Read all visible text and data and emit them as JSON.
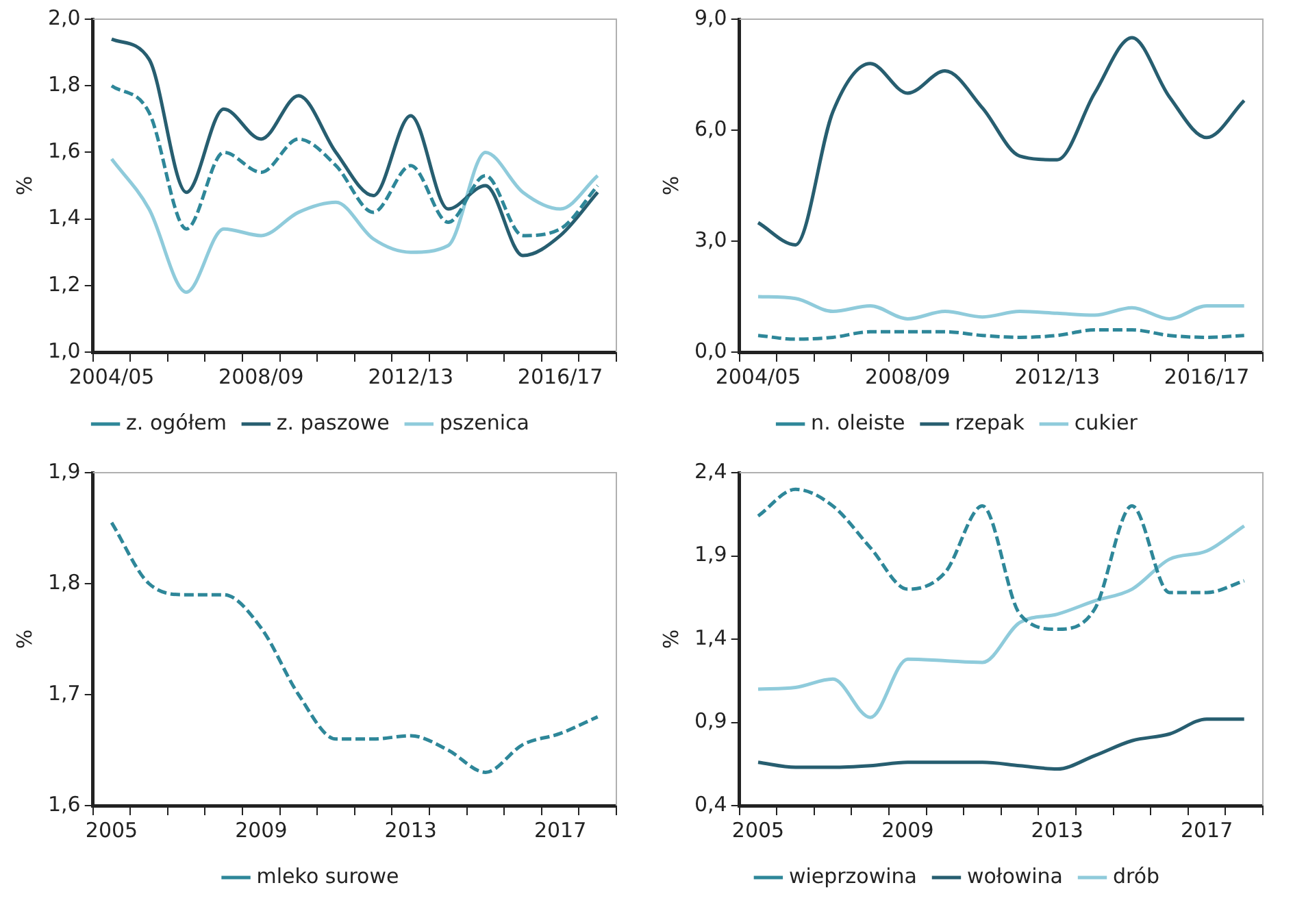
{
  "chart_data": [
    {
      "type": "line",
      "ylabel": "%",
      "categories": [
        "2004/05",
        null,
        null,
        null,
        "2008/09",
        null,
        null,
        null,
        "2012/13",
        null,
        null,
        null,
        "2016/17",
        null
      ],
      "ylim": [
        1.0,
        2.0
      ],
      "yticks": [
        {
          "value": 1.0,
          "label": "1,0"
        },
        {
          "value": 1.2,
          "label": "1,2"
        },
        {
          "value": 1.4,
          "label": "1,4"
        },
        {
          "value": 1.6,
          "label": "1,6"
        },
        {
          "value": 1.8,
          "label": "1,8"
        },
        {
          "value": 2.0,
          "label": "2,0"
        }
      ],
      "grid": false,
      "legend": "bottom",
      "marker": "none",
      "series": [
        {
          "name": "z. ogółem",
          "color": "#2e8799",
          "line_style": "dashed",
          "values": [
            1.8,
            1.72,
            1.37,
            1.6,
            1.54,
            1.64,
            1.56,
            1.42,
            1.56,
            1.39,
            1.53,
            1.35,
            1.37,
            1.5
          ]
        },
        {
          "name": "z. paszowe",
          "color": "#275e70",
          "line_style": "solid",
          "values": [
            1.94,
            1.88,
            1.48,
            1.73,
            1.64,
            1.77,
            1.6,
            1.47,
            1.71,
            1.43,
            1.5,
            1.29,
            1.35,
            1.48
          ]
        },
        {
          "name": "pszenica",
          "color": "#8fcbdb",
          "line_style": "solid",
          "values": [
            1.58,
            1.43,
            1.18,
            1.37,
            1.35,
            1.42,
            1.45,
            1.34,
            1.3,
            1.32,
            1.6,
            1.48,
            1.43,
            1.53
          ]
        }
      ]
    },
    {
      "type": "line",
      "ylabel": "%",
      "categories": [
        "2004/05",
        null,
        null,
        null,
        "2008/09",
        null,
        null,
        null,
        "2012/13",
        null,
        null,
        null,
        "2016/17",
        null
      ],
      "ylim": [
        0,
        9
      ],
      "yticks": [
        {
          "value": 0,
          "label": "0,0"
        },
        {
          "value": 3,
          "label": "3,0"
        },
        {
          "value": 6,
          "label": "6,0"
        },
        {
          "value": 9,
          "label": "9,0"
        }
      ],
      "grid": false,
      "legend": "bottom",
      "marker": "none",
      "series": [
        {
          "name": "n. oleiste",
          "color": "#2e8799",
          "line_style": "dashed",
          "values": [
            0.45,
            0.35,
            0.4,
            0.55,
            0.55,
            0.55,
            0.45,
            0.4,
            0.45,
            0.6,
            0.6,
            0.45,
            0.4,
            0.45
          ]
        },
        {
          "name": "rzepak",
          "color": "#275e70",
          "line_style": "solid",
          "values": [
            3.5,
            2.9,
            6.5,
            7.8,
            7.0,
            7.6,
            6.6,
            5.3,
            5.2,
            7.0,
            8.5,
            6.9,
            5.8,
            6.8
          ]
        },
        {
          "name": "cukier",
          "color": "#8fcbdb",
          "line_style": "solid",
          "values": [
            1.5,
            1.45,
            1.1,
            1.25,
            0.9,
            1.1,
            0.95,
            1.1,
            1.05,
            1.0,
            1.2,
            0.9,
            1.25,
            1.25
          ]
        }
      ]
    },
    {
      "type": "line",
      "ylabel": "%",
      "categories": [
        "2005",
        null,
        null,
        null,
        "2009",
        null,
        null,
        null,
        "2013",
        null,
        null,
        null,
        "2017",
        null
      ],
      "ylim": [
        1.6,
        1.9
      ],
      "yticks": [
        {
          "value": 1.6,
          "label": "1,6"
        },
        {
          "value": 1.7,
          "label": "1,7"
        },
        {
          "value": 1.8,
          "label": "1,8"
        },
        {
          "value": 1.9,
          "label": "1,9"
        }
      ],
      "grid": false,
      "legend": "bottom",
      "marker": "none",
      "series": [
        {
          "name": "mleko surowe",
          "color": "#2e8799",
          "line_style": "dashed",
          "values": [
            1.855,
            1.8,
            1.79,
            1.79,
            1.76,
            1.7,
            1.66,
            1.66,
            1.663,
            1.65,
            1.63,
            1.655,
            1.665,
            1.68
          ]
        }
      ]
    },
    {
      "type": "line",
      "ylabel": "%",
      "categories": [
        "2005",
        null,
        null,
        null,
        "2009",
        null,
        null,
        null,
        "2013",
        null,
        null,
        null,
        "2017",
        null
      ],
      "ylim": [
        0.4,
        2.4
      ],
      "yticks": [
        {
          "value": 0.4,
          "label": "0,4"
        },
        {
          "value": 0.9,
          "label": "0,9"
        },
        {
          "value": 1.4,
          "label": "1,4"
        },
        {
          "value": 1.9,
          "label": "1,9"
        },
        {
          "value": 2.4,
          "label": "2,4"
        }
      ],
      "grid": false,
      "legend": "bottom",
      "marker": "none",
      "series": [
        {
          "name": "wieprzowina",
          "color": "#2e8799",
          "line_style": "dashed",
          "values": [
            2.14,
            2.3,
            2.2,
            1.95,
            1.7,
            1.8,
            2.2,
            1.55,
            1.46,
            1.58,
            2.2,
            1.68,
            1.68,
            1.75
          ]
        },
        {
          "name": "wołowina",
          "color": "#275e70",
          "line_style": "solid",
          "values": [
            0.66,
            0.63,
            0.63,
            0.64,
            0.66,
            0.66,
            0.66,
            0.64,
            0.62,
            0.7,
            0.79,
            0.83,
            0.92,
            0.92
          ]
        },
        {
          "name": "drób",
          "color": "#8fcbdb",
          "line_style": "solid",
          "values": [
            1.1,
            1.11,
            1.16,
            0.93,
            1.28,
            1.27,
            1.26,
            1.5,
            1.55,
            1.63,
            1.7,
            1.88,
            1.93,
            2.08
          ]
        }
      ]
    }
  ]
}
